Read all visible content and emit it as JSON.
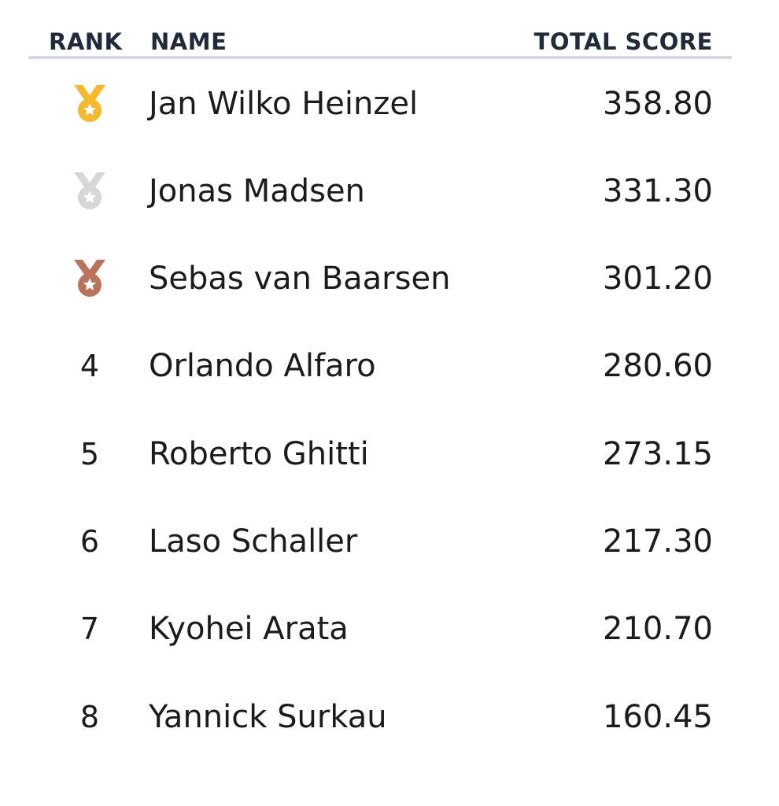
{
  "table": {
    "headers": {
      "rank": "RANK",
      "name": "NAME",
      "score": "TOTAL SCORE"
    },
    "rows": [
      {
        "rank": "1",
        "medal": "gold-medal-icon",
        "name": "Jan Wilko Heinzel",
        "score": "358.80"
      },
      {
        "rank": "2",
        "medal": "silver-medal-icon",
        "name": "Jonas Madsen",
        "score": "331.30"
      },
      {
        "rank": "3",
        "medal": "bronze-medal-icon",
        "name": "Sebas van Baarsen",
        "score": "301.20"
      },
      {
        "rank": "4",
        "medal": "",
        "name": "Orlando Alfaro",
        "score": "280.60"
      },
      {
        "rank": "5",
        "medal": "",
        "name": "Roberto Ghitti",
        "score": "273.15"
      },
      {
        "rank": "6",
        "medal": "",
        "name": "Laso Schaller",
        "score": "217.30"
      },
      {
        "rank": "7",
        "medal": "",
        "name": "Kyohei Arata",
        "score": "210.70"
      },
      {
        "rank": "8",
        "medal": "",
        "name": "Yannick Surkau",
        "score": "160.45"
      }
    ]
  },
  "colors": {
    "header_text": "#1f2a3a",
    "divider": "#d4d8e0",
    "gold": "#f5b82e",
    "silver": "#d7d7d7",
    "bronze": "#b9735a"
  }
}
